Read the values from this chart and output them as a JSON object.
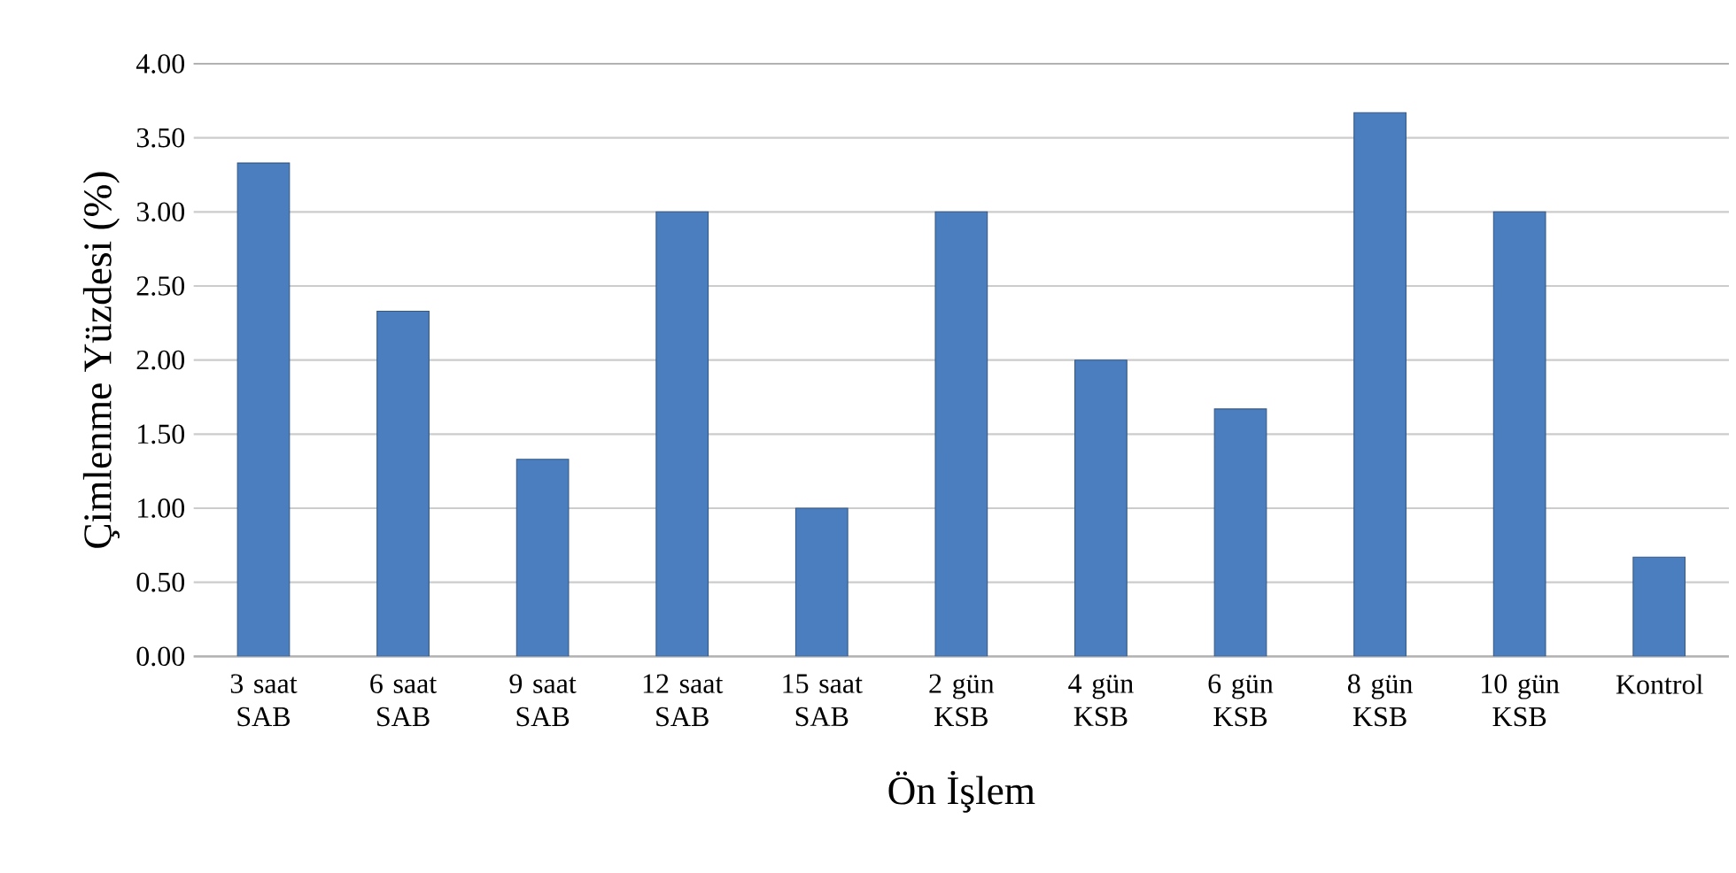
{
  "chart_data": {
    "type": "bar",
    "xlabel": "Ön İşlem",
    "ylabel": "Çimlenme Yüzdesi (%)",
    "categories": [
      "3 saat SAB",
      "6 saat SAB",
      "9 saat SAB",
      "12 saat SAB",
      "15 saat SAB",
      "2 gün KSB",
      "4 gün KSB",
      "6 gün KSB",
      "8 gün KSB",
      "10 gün KSB",
      "Kontrol"
    ],
    "values": [
      3.33,
      2.33,
      1.33,
      3.0,
      1.0,
      3.0,
      2.0,
      1.67,
      3.67,
      3.0,
      0.67
    ],
    "color": "#4a7ebf",
    "ylim": [
      0,
      4
    ],
    "yticks": [
      {
        "value": 0,
        "label": "0.00"
      },
      {
        "value": 0.5,
        "label": "0.50"
      },
      {
        "value": 1,
        "label": "1.00"
      },
      {
        "value": 1.5,
        "label": "1.50"
      },
      {
        "value": 2,
        "label": "2.00"
      },
      {
        "value": 2.5,
        "label": "2.50"
      },
      {
        "value": 3,
        "label": "3.00"
      },
      {
        "value": 3.5,
        "label": "3.50"
      },
      {
        "value": 4,
        "label": "4.00"
      }
    ],
    "grid": "y"
  }
}
